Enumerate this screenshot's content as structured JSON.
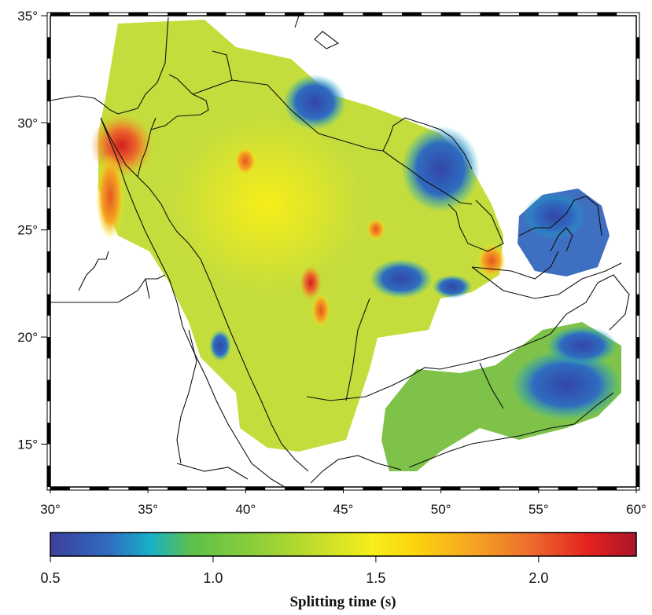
{
  "map": {
    "lon_range": [
      30,
      60
    ],
    "lat_range": [
      13,
      35
    ],
    "x_ticks": [
      {
        "value": 30,
        "label": "30°"
      },
      {
        "value": 35,
        "label": "35°"
      },
      {
        "value": 40,
        "label": "40°"
      },
      {
        "value": 45,
        "label": "45°"
      },
      {
        "value": 50,
        "label": "50°"
      },
      {
        "value": 55,
        "label": "55°"
      },
      {
        "value": 60,
        "label": "60°"
      }
    ],
    "y_ticks": [
      {
        "value": 35,
        "label": "35°"
      },
      {
        "value": 30,
        "label": "30°"
      },
      {
        "value": 25,
        "label": "25°"
      },
      {
        "value": 20,
        "label": "20°"
      },
      {
        "value": 15,
        "label": "15°"
      }
    ]
  },
  "colorbar": {
    "title": "Splitting time (s)",
    "range": [
      0.5,
      2.3
    ],
    "ticks": [
      {
        "value": 0.5,
        "label": "0.5"
      },
      {
        "value": 1.0,
        "label": "1.0"
      },
      {
        "value": 1.5,
        "label": "1.5"
      },
      {
        "value": 2.0,
        "label": "2.0"
      }
    ],
    "colors": [
      "#3e3f9b",
      "#2f6cc0",
      "#17b0c9",
      "#5cc04a",
      "#9bd236",
      "#f7ee1a",
      "#fbd50d",
      "#f5a623",
      "#ec6c2c",
      "#e4201f",
      "#a8172a"
    ]
  },
  "regions": [
    {
      "name": "arabia",
      "color": "#c5dd3c"
    },
    {
      "name": "oman",
      "color": "#7fc24a"
    },
    {
      "name": "uae",
      "color": "#3f6fc0"
    }
  ]
}
